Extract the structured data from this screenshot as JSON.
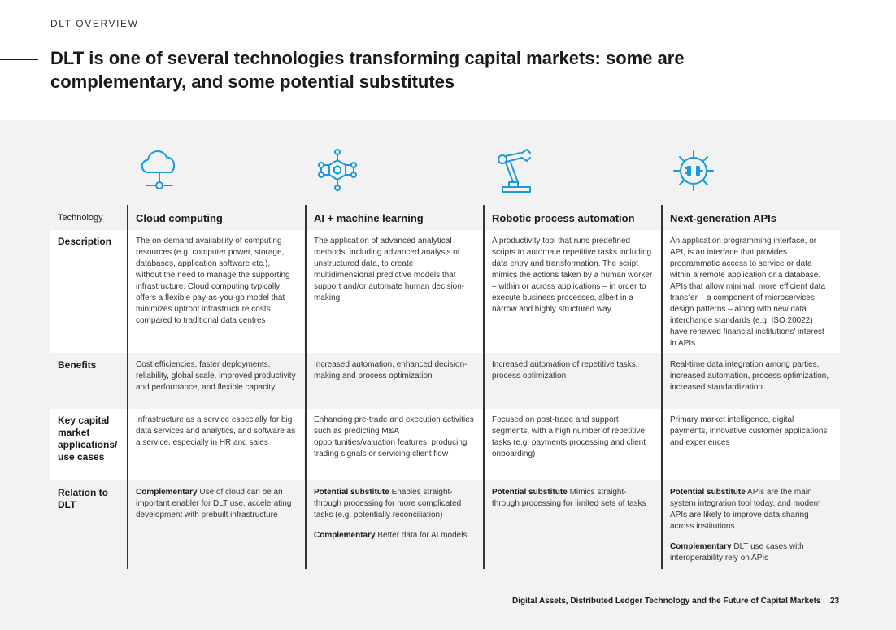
{
  "header": {
    "section_label": "DLT OVERVIEW",
    "title": "DLT is one of several technologies transforming capital markets: some are complementary, and some potential substitutes"
  },
  "accent_color": "#1a9ad6",
  "row_labels": {
    "technology": "Technology",
    "description": "Description",
    "benefits": "Benefits",
    "applications": "Key capital market applications/ use cases",
    "relation": "Relation to DLT"
  },
  "columns": [
    {
      "icon": "cloud-icon",
      "technology": "Cloud computing",
      "description": "The on-demand availability of computing resources (e.g. computer power, storage, databases, application software etc.), without the need to manage the supporting infrastructure. Cloud computing typically offers a flexible pay-as-you-go model that minimizes upfront infrastructure costs compared to traditional data centres",
      "benefits": "Cost efficiencies, faster deployments, reliability, global scale, improved productivity and performance, and flexible capacity",
      "applications": "Infrastructure as a service especially for big data services and analytics, and software as a service, especially in HR and sales",
      "relation_1_label": "Complementary",
      "relation_1_text": " Use of cloud can be an important enabler for DLT use, accelerating development with prebuilt infrastructure",
      "relation_2_label": "",
      "relation_2_text": ""
    },
    {
      "icon": "neural-network-icon",
      "technology": "AI + machine learning",
      "description": "The application of advanced analytical methods, including advanced analysis of unstructured data, to create multidimensional predictive models that support and/or automate human decision-making",
      "benefits": "Increased automation, enhanced decision-making and process optimization",
      "applications": "Enhancing pre-trade and execution activities such as predicting M&A opportunities/valuation features, producing trading signals or servicing client flow",
      "relation_1_label": "Potential substitute",
      "relation_1_text": " Enables straight-through processing for more complicated tasks (e.g. potentially reconciliation)",
      "relation_2_label": "Complementary",
      "relation_2_text": " Better data for AI models"
    },
    {
      "icon": "robotic-arm-icon",
      "technology": "Robotic process automation",
      "description": "A productivity tool that runs predefined scripts to automate repetitive tasks including data entry and transformation. The script mimics the actions taken by a human worker – within or across applications – in order to execute business processes, albeit in a narrow and highly structured way",
      "benefits": "Increased automation of repetitive tasks, process optimization",
      "applications": "Focused on post-trade and support segments, with a high number of repetitive tasks (e.g. payments processing and client onboarding)",
      "relation_1_label": "Potential substitute",
      "relation_1_text": " Mimics straight-through processing for limited sets of tasks",
      "relation_2_label": "",
      "relation_2_text": ""
    },
    {
      "icon": "api-plug-icon",
      "technology": "Next-generation APIs",
      "description": "An application programming interface, or API, is an interface that provides programmatic access to service or data within a remote application or a database. APIs that allow minimal, more efficient data transfer – a component of microservices design patterns – along with new data interchange standards (e.g. ISO 20022) have renewed financial institutions' interest in APIs",
      "benefits": "Real-time data integration among parties, increased automation, process optimization, increased standardization",
      "applications": "Primary market intelligence, digital payments, innovative customer applications and experiences",
      "relation_1_label": "Potential substitute",
      "relation_1_text": " APIs are the main system integration tool today, and modern APIs are likely to improve data sharing across institutions",
      "relation_2_label": "Complementary",
      "relation_2_text": " DLT use cases with interoperability rely on APIs"
    }
  ],
  "footer": {
    "text": "Digital Assets, Distributed Ledger Technology and the Future of Capital Markets",
    "page": "23"
  }
}
